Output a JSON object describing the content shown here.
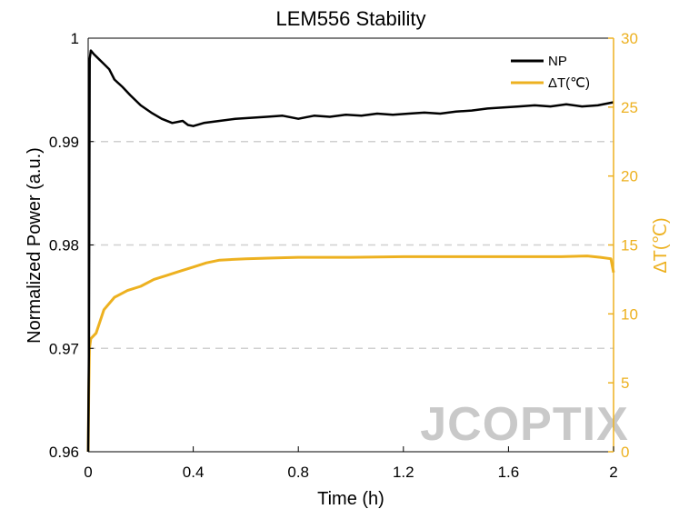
{
  "chart_data": {
    "type": "line",
    "title": "LEM556 Stability",
    "xlabel": "Time (h)",
    "ylabel": "Normalized Power (a.u.)",
    "ylabel_right": "ΔT(℃)",
    "xlim": [
      0,
      2
    ],
    "ylim": [
      0.96,
      1.0
    ],
    "ylim_right": [
      0,
      30
    ],
    "x_ticks": [
      "0",
      "0.4",
      "0.8",
      "1.2",
      "1.6",
      "2"
    ],
    "y_ticks": [
      "0.96",
      "0.97",
      "0.98",
      "0.99",
      "1"
    ],
    "y_ticks_right": [
      "0",
      "5",
      "10",
      "15",
      "20",
      "25",
      "30"
    ],
    "grid": "horizontal dashed",
    "legend_position": "top-right",
    "series": [
      {
        "name": "NP",
        "axis": "left",
        "color": "#000000",
        "x": [
          0,
          0.003,
          0.006,
          0.01,
          0.02,
          0.04,
          0.06,
          0.08,
          0.1,
          0.13,
          0.16,
          0.2,
          0.24,
          0.28,
          0.32,
          0.36,
          0.38,
          0.4,
          0.44,
          0.5,
          0.56,
          0.62,
          0.68,
          0.74,
          0.8,
          0.86,
          0.92,
          0.98,
          1.04,
          1.1,
          1.16,
          1.22,
          1.28,
          1.34,
          1.4,
          1.46,
          1.52,
          1.58,
          1.64,
          1.7,
          1.76,
          1.82,
          1.88,
          1.94,
          2.0
        ],
        "values": [
          0.96,
          0.971,
          0.998,
          0.9988,
          0.9985,
          0.998,
          0.9975,
          0.997,
          0.996,
          0.9953,
          0.9945,
          0.9935,
          0.9928,
          0.9922,
          0.9918,
          0.992,
          0.9916,
          0.9915,
          0.9918,
          0.992,
          0.9922,
          0.9923,
          0.9924,
          0.9925,
          0.9922,
          0.9925,
          0.9924,
          0.9926,
          0.9925,
          0.9927,
          0.9926,
          0.9927,
          0.9928,
          0.9927,
          0.9929,
          0.993,
          0.9932,
          0.9933,
          0.9934,
          0.9935,
          0.9934,
          0.9936,
          0.9934,
          0.9935,
          0.9938
        ]
      },
      {
        "name": "ΔT(℃)",
        "axis": "right",
        "color": "#EDB120",
        "x": [
          0,
          0.002,
          0.005,
          0.01,
          0.03,
          0.06,
          0.1,
          0.15,
          0.2,
          0.25,
          0.3,
          0.35,
          0.4,
          0.45,
          0.5,
          0.6,
          0.7,
          0.8,
          0.9,
          1.0,
          1.2,
          1.4,
          1.6,
          1.8,
          1.9,
          1.95,
          1.99,
          2.0
        ],
        "values": [
          0,
          4,
          7.5,
          8.2,
          8.6,
          10.3,
          11.2,
          11.7,
          12.0,
          12.5,
          12.8,
          13.1,
          13.4,
          13.7,
          13.9,
          14.0,
          14.05,
          14.1,
          14.1,
          14.1,
          14.15,
          14.15,
          14.15,
          14.15,
          14.2,
          14.1,
          14.0,
          13.0
        ]
      }
    ]
  },
  "watermark": "JCOPTIX"
}
